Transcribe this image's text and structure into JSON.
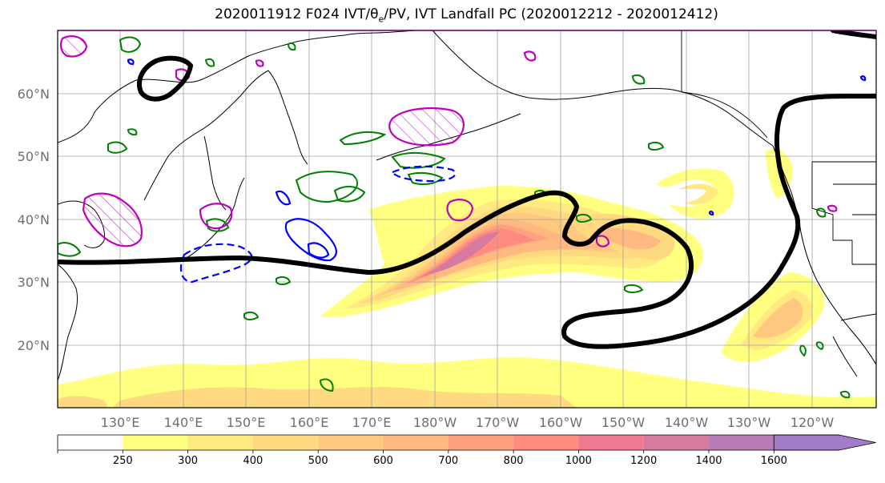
{
  "title": "2020011912 F024 IVT/θe/PV, IVT Landfall PC (2020012212 - 2020012412)",
  "title_parts": {
    "prefix": "2020011912 F024 IVT/",
    "theta": "θ",
    "theta_sub": "e",
    "suffix": "/PV, IVT Landfall PC (2020012212 - 2020012412)"
  },
  "map": {
    "lat_labels": [
      "60°N",
      "50°N",
      "40°N",
      "30°N",
      "20°N"
    ],
    "lon_labels": [
      "130°E",
      "140°E",
      "150°E",
      "160°E",
      "170°E",
      "180°W",
      "170°W",
      "160°W",
      "150°W",
      "140°W",
      "130°W",
      "120°W"
    ],
    "extent": {
      "lon_min": 120,
      "lon_max": 250,
      "lat_min": 10,
      "lat_max": 70
    },
    "ivt_color": "#ffff80",
    "ivt_peak_color": "#a37cc8",
    "theta_e_color": "#008000",
    "pv_pos_color": "#c000c0",
    "pv_neg_color": "#0000ff",
    "landfall_pc_color": "#000000"
  },
  "colorbar": {
    "levels": [
      "250",
      "300",
      "400",
      "500",
      "600",
      "700",
      "800",
      "1000",
      "1200",
      "1400",
      "1600"
    ],
    "colors": [
      "#ffffff",
      "#ffff80",
      "#ffe980",
      "#ffd980",
      "#ffc880",
      "#ffb880",
      "#ffa080",
      "#ff8a80",
      "#f07890",
      "#d67aa0",
      "#b87cb8",
      "#a37cc8"
    ]
  }
}
